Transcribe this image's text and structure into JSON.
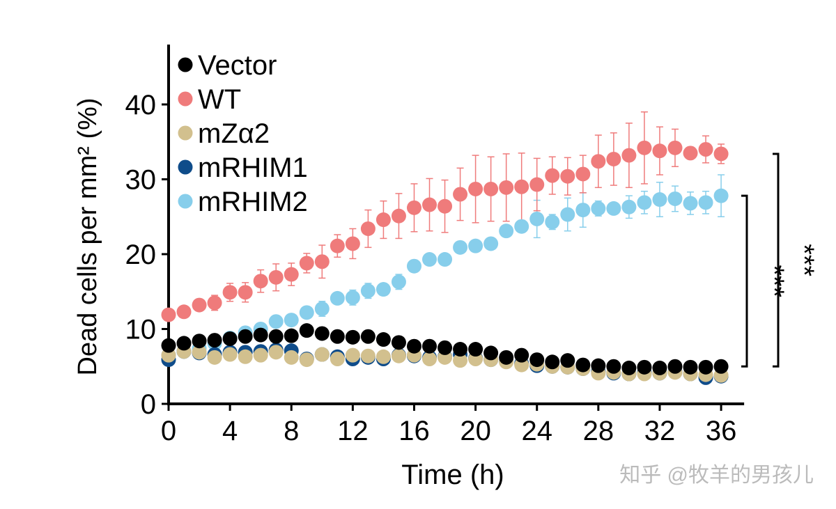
{
  "chart_data": {
    "type": "scatter",
    "title": "",
    "xlabel": "Time (h)",
    "ylabel": "Dead cells per mm² (%)",
    "xlim": [
      0,
      37.5
    ],
    "ylim": [
      0,
      48
    ],
    "xticks": [
      0,
      4,
      8,
      12,
      16,
      20,
      24,
      28,
      32,
      36
    ],
    "yticks": [
      0,
      10,
      20,
      30,
      40
    ],
    "grid": false,
    "legend_position": "top-left",
    "x": [
      0,
      1,
      2,
      3,
      4,
      5,
      6,
      7,
      8,
      9,
      10,
      11,
      12,
      13,
      14,
      15,
      16,
      17,
      18,
      19,
      20,
      21,
      22,
      23,
      24,
      25,
      26,
      27,
      28,
      29,
      30,
      31,
      32,
      33,
      34,
      35,
      36
    ],
    "series": [
      {
        "name": "mRHIM2",
        "color": "#87CEEB",
        "values": [
          6.5,
          7.0,
          7.4,
          8.1,
          8.8,
          9.5,
          10.0,
          11.0,
          11.2,
          12.2,
          12.7,
          14.1,
          14.2,
          15.1,
          15.3,
          16.3,
          18.4,
          19.3,
          19.3,
          20.9,
          21.1,
          21.4,
          23.1,
          23.7,
          24.7,
          24.3,
          25.3,
          25.9,
          26.1,
          26.1,
          26.3,
          26.9,
          27.3,
          27.4,
          26.8,
          26.9,
          27.8
        ],
        "error": [
          0.4,
          0.4,
          0.4,
          0.4,
          0.4,
          0.5,
          0.5,
          0.5,
          0.5,
          0.5,
          1.0,
          0.6,
          1.0,
          1.0,
          0.8,
          1.0,
          0.8,
          0.5,
          0.5,
          0.5,
          0.5,
          0.5,
          0.5,
          0.8,
          2.5,
          1.0,
          2.2,
          2.3,
          1.0,
          0.5,
          1.5,
          1.5,
          2.3,
          1.7,
          1.5,
          1.5,
          2.8
        ]
      },
      {
        "name": "mRHIM1",
        "color": "#0F4C8A",
        "values": [
          5.9,
          7.0,
          6.8,
          6.6,
          6.9,
          6.9,
          7.0,
          7.2,
          7.1,
          6.0,
          6.6,
          6.3,
          6.0,
          6.2,
          6.0,
          6.5,
          6.4,
          6.2,
          6.3,
          6.6,
          6.1,
          5.9,
          5.7,
          5.4,
          5.1,
          5.0,
          4.9,
          4.7,
          4.3,
          4.1,
          4.0,
          4.2,
          4.1,
          4.3,
          4.0,
          3.5,
          3.7
        ]
      },
      {
        "name": "mZα2",
        "color": "#D2C08E",
        "values": [
          6.5,
          7.0,
          6.9,
          6.2,
          6.6,
          6.3,
          6.5,
          6.9,
          6.2,
          5.9,
          6.6,
          6.0,
          6.5,
          6.4,
          6.3,
          6.4,
          6.5,
          6.0,
          6.2,
          5.8,
          6.0,
          5.9,
          5.6,
          5.2,
          5.3,
          5.0,
          4.9,
          4.7,
          4.1,
          4.2,
          4.0,
          4.0,
          4.1,
          4.2,
          4.0,
          3.9,
          3.8
        ]
      },
      {
        "name": "Vector",
        "color": "#000000",
        "values": [
          7.8,
          8.1,
          8.4,
          8.5,
          8.7,
          9.0,
          9.2,
          9.0,
          9.1,
          9.8,
          9.4,
          9.0,
          8.9,
          9.0,
          8.6,
          8.2,
          7.7,
          7.7,
          7.5,
          7.3,
          7.3,
          6.8,
          6.2,
          6.5,
          5.9,
          5.6,
          5.8,
          5.2,
          5.1,
          5.0,
          4.8,
          4.9,
          4.8,
          5.0,
          4.9,
          4.9,
          5.0
        ]
      },
      {
        "name": "WT",
        "color": "#EF7B7B",
        "values": [
          11.9,
          12.3,
          13.2,
          13.5,
          14.9,
          14.9,
          16.4,
          16.9,
          17.3,
          18.8,
          19.0,
          21.1,
          21.4,
          23.4,
          24.6,
          25.1,
          26.2,
          26.6,
          26.4,
          28.0,
          28.7,
          28.7,
          28.9,
          29.0,
          29.3,
          30.5,
          30.4,
          30.7,
          32.4,
          32.7,
          33.2,
          34.2,
          33.8,
          34.2,
          33.5,
          34.0,
          33.4
        ],
        "error": [
          0.3,
          0.5,
          0.6,
          1.0,
          1.2,
          1.3,
          1.5,
          1.8,
          1.5,
          1.3,
          2.2,
          1.5,
          2.0,
          2.5,
          2.5,
          3.0,
          3.2,
          3.5,
          3.5,
          3.5,
          4.5,
          4.3,
          4.5,
          4.5,
          3.5,
          2.5,
          2.5,
          2.5,
          3.5,
          3.5,
          4.3,
          4.8,
          3.2,
          2.5,
          0.8,
          1.8,
          1.3
        ]
      }
    ],
    "legend_order": [
      "Vector",
      "WT",
      "mZα2",
      "mRHIM1",
      "mRHIM2"
    ],
    "annotations": [
      {
        "text": "***",
        "from": "mRHIM2",
        "to": "Vector"
      },
      {
        "text": "***",
        "from": "WT",
        "to": "Vector"
      }
    ]
  },
  "watermark": "知乎 @牧羊的男孩儿"
}
